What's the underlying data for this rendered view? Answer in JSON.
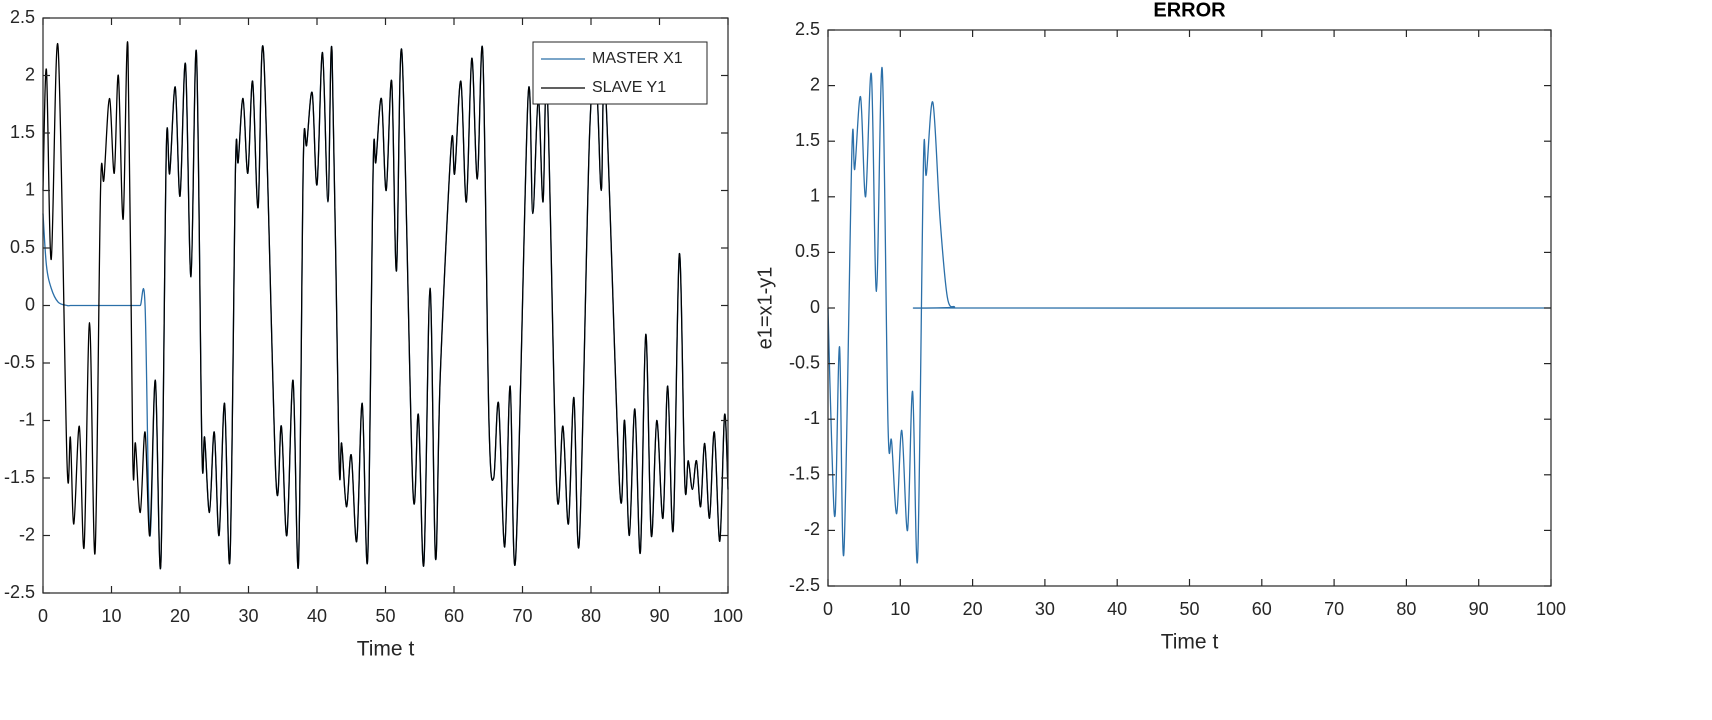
{
  "chart_data": [
    {
      "type": "line",
      "xlabel": "Time t",
      "x": [
        0,
        0.5,
        1.2,
        2.2,
        3.5,
        4.0,
        4.5,
        5.3,
        6.0,
        6.8,
        7.6,
        8.4,
        8.9,
        9.7,
        10.4,
        11.0,
        11.7,
        12.4,
        13.1,
        13.5,
        14.2,
        14.9,
        15.6,
        16.4,
        17.2,
        18.0,
        18.5,
        19.3,
        20.0,
        20.8,
        21.6,
        22.4,
        23.2,
        23.6,
        24.3,
        25.0,
        25.7,
        26.5,
        27.3,
        28.1,
        28.5,
        29.2,
        29.9,
        30.6,
        31.4,
        32.2,
        34.0,
        34.8,
        35.6,
        36.5,
        37.3,
        38.0,
        38.5,
        39.3,
        40.0,
        40.8,
        41.6,
        42.2,
        43.2,
        43.6,
        44.3,
        45.0,
        45.8,
        46.6,
        47.4,
        48.2,
        48.6,
        49.4,
        50.1,
        50.9,
        51.6,
        52.4,
        54.0,
        54.8,
        55.6,
        56.5,
        57.3,
        58.0,
        59.6,
        60.1,
        61.0,
        61.8,
        62.6,
        63.4,
        64.2,
        65.1,
        65.8,
        66.5,
        67.4,
        68.2,
        69.0,
        70.8,
        71.5,
        72.3,
        73.0,
        73.6,
        75.0,
        75.9,
        76.7,
        77.5,
        78.3,
        79.8,
        80.8,
        81.5,
        82.1,
        84.2,
        84.9,
        85.6,
        86.4,
        87.2,
        88.0,
        88.8,
        89.6,
        90.5,
        91.2,
        92.0,
        92.9,
        93.7,
        94.2,
        94.8,
        95.4,
        96.0,
        96.6,
        97.3,
        98.0,
        98.8,
        99.5,
        100
      ],
      "series": [
        {
          "name": "MASTER X1",
          "color": "#2b6fa8",
          "values": [
            0.8,
            0.35,
            0.15,
            0.03,
            0,
            0,
            0,
            0,
            0,
            0,
            0,
            0,
            0,
            0,
            0,
            0,
            0,
            0,
            0,
            0,
            0,
            0,
            -2.0,
            -0.65,
            -2.25,
            1.35,
            1.15,
            1.9,
            0.95,
            2.1,
            0.25,
            2.2,
            -1.25,
            -1.15,
            -1.8,
            -1.1,
            -2.0,
            -0.85,
            -2.2,
            1.2,
            1.25,
            1.8,
            1.15,
            1.95,
            0.85,
            2.2,
            -1.5,
            -1.05,
            -2.0,
            -0.65,
            -2.25,
            1.25,
            1.4,
            1.85,
            1.05,
            2.2,
            0.9,
            2.2,
            -1.3,
            -1.2,
            -1.75,
            -1.3,
            -2.05,
            -0.85,
            -2.2,
            1.2,
            1.25,
            1.8,
            1.0,
            1.95,
            0.3,
            2.2,
            -1.6,
            -0.95,
            -2.25,
            0.15,
            -2.2,
            -0.6,
            1.4,
            1.15,
            1.95,
            0.9,
            2.15,
            1.1,
            2.2,
            -1.0,
            -1.5,
            -0.85,
            -2.1,
            -0.7,
            -2.2,
            1.8,
            0.8,
            1.8,
            0.9,
            1.9,
            -1.6,
            -1.05,
            -1.9,
            -0.8,
            -2.05,
            1.5,
            1.9,
            1.0,
            1.9,
            -1.6,
            -1.0,
            -2.0,
            -0.9,
            -2.15,
            -0.25,
            -2.0,
            -1.0,
            -1.85,
            -0.7,
            -1.95,
            0.45,
            -1.55,
            -1.35,
            -1.6,
            -1.35,
            -1.75,
            -1.2,
            -1.85,
            -1.1,
            -2.05,
            -0.95,
            -1.6
          ]
        },
        {
          "name": "SLAVE Y1",
          "color": "#000000",
          "values": [
            1.0,
            2.05,
            0.4,
            2.25,
            -1.35,
            -1.15,
            -1.9,
            -1.05,
            -2.1,
            -0.15,
            -2.15,
            1.0,
            1.1,
            1.8,
            1.15,
            2.0,
            0.75,
            2.25,
            -1.3,
            -1.2,
            -1.8,
            -1.1,
            -2.0,
            -0.65,
            -2.25,
            1.35,
            1.15,
            1.9,
            0.95,
            2.1,
            0.25,
            2.2,
            -1.25,
            -1.15,
            -1.8,
            -1.1,
            -2.0,
            -0.85,
            -2.2,
            1.2,
            1.25,
            1.8,
            1.15,
            1.95,
            0.85,
            2.2,
            -1.5,
            -1.05,
            -2.0,
            -0.65,
            -2.25,
            1.25,
            1.4,
            1.85,
            1.05,
            2.2,
            0.9,
            2.2,
            -1.3,
            -1.2,
            -1.75,
            -1.3,
            -2.05,
            -0.85,
            -2.2,
            1.2,
            1.25,
            1.8,
            1.0,
            1.95,
            0.3,
            2.2,
            -1.6,
            -0.95,
            -2.25,
            0.15,
            -2.2,
            -0.6,
            1.4,
            1.15,
            1.95,
            0.9,
            2.15,
            1.1,
            2.2,
            -1.0,
            -1.5,
            -0.85,
            -2.1,
            -0.7,
            -2.2,
            1.8,
            0.8,
            1.8,
            0.9,
            1.9,
            -1.6,
            -1.05,
            -1.9,
            -0.8,
            -2.05,
            1.5,
            1.9,
            1.0,
            1.9,
            -1.6,
            -1.0,
            -2.0,
            -0.9,
            -2.15,
            -0.25,
            -2.0,
            -1.0,
            -1.85,
            -0.7,
            -1.95,
            0.45,
            -1.55,
            -1.35,
            -1.6,
            -1.35,
            -1.75,
            -1.2,
            -1.85,
            -1.1,
            -2.05,
            -0.95,
            -1.6
          ]
        }
      ],
      "xlim": [
        0,
        100
      ],
      "xticks": [
        0,
        10,
        20,
        30,
        40,
        50,
        60,
        70,
        80,
        90,
        100
      ],
      "ylim": [
        -2.5,
        2.5
      ],
      "yticks": [
        -2.5,
        -2,
        -1.5,
        -1,
        -0.5,
        0,
        0.5,
        1,
        1.5,
        2,
        2.5
      ],
      "legend": "northeast"
    },
    {
      "type": "line",
      "title": "ERROR",
      "xlabel": "Time t",
      "ylabel": "e1=x1-y1",
      "x": [
        0,
        0.5,
        1.0,
        1.6,
        2.2,
        3.3,
        3.7,
        4.5,
        5.2,
        6.0,
        6.7,
        7.5,
        8.3,
        8.8,
        9.5,
        10.2,
        11.0,
        11.7,
        12.4,
        13.2,
        13.6,
        14.5,
        15.5,
        16.5,
        17.5,
        18.0,
        100
      ],
      "series": [
        {
          "name": "e1",
          "color": "#2b6fa8",
          "values": [
            0,
            -1.2,
            -1.85,
            -0.35,
            -2.2,
            1.4,
            1.25,
            1.9,
            1.0,
            2.1,
            0.15,
            2.15,
            -1.05,
            -1.2,
            -1.85,
            -1.1,
            -2.0,
            -0.75,
            -2.25,
            1.3,
            1.2,
            1.85,
            0.8,
            0.1,
            0.01,
            0,
            0
          ]
        }
      ],
      "xlim": [
        0,
        100
      ],
      "xticks": [
        0,
        10,
        20,
        30,
        40,
        50,
        60,
        70,
        80,
        90,
        100
      ],
      "ylim": [
        -2.5,
        2.5
      ],
      "yticks": [
        -2.5,
        -2,
        -1.5,
        -1,
        -0.5,
        0,
        0.5,
        1,
        1.5,
        2,
        2.5
      ]
    }
  ]
}
